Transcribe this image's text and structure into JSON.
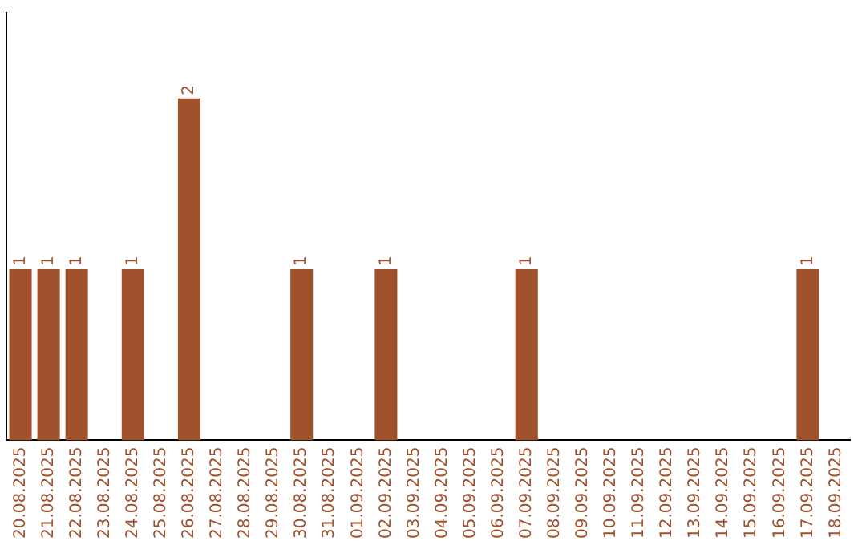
{
  "chart_data": {
    "type": "bar",
    "categories": [
      "20.08.2025",
      "21.08.2025",
      "22.08.2025",
      "23.08.2025",
      "24.08.2025",
      "25.08.2025",
      "26.08.2025",
      "27.08.2025",
      "28.08.2025",
      "29.08.2025",
      "30.08.2025",
      "31.08.2025",
      "01.09.2025",
      "02.09.2025",
      "03.09.2025",
      "04.09.2025",
      "05.09.2025",
      "06.09.2025",
      "07.09.2025",
      "08.09.2025",
      "09.09.2025",
      "10.09.2025",
      "11.09.2025",
      "12.09.2025",
      "13.09.2025",
      "14.09.2025",
      "15.09.2025",
      "16.09.2025",
      "17.09.2025",
      "18.09.2025"
    ],
    "values": [
      1,
      1,
      1,
      0,
      1,
      0,
      2,
      0,
      0,
      0,
      1,
      0,
      0,
      1,
      0,
      0,
      0,
      0,
      1,
      0,
      0,
      0,
      0,
      0,
      0,
      0,
      0,
      0,
      1,
      0
    ],
    "value_labels": [
      "1",
      "1",
      "1",
      null,
      "1",
      null,
      "2",
      null,
      null,
      null,
      "1",
      null,
      null,
      "1",
      null,
      null,
      null,
      null,
      "1",
      null,
      null,
      null,
      null,
      null,
      null,
      null,
      null,
      null,
      "1",
      null
    ],
    "color": "#a0522d",
    "grid": false,
    "legend": false
  }
}
